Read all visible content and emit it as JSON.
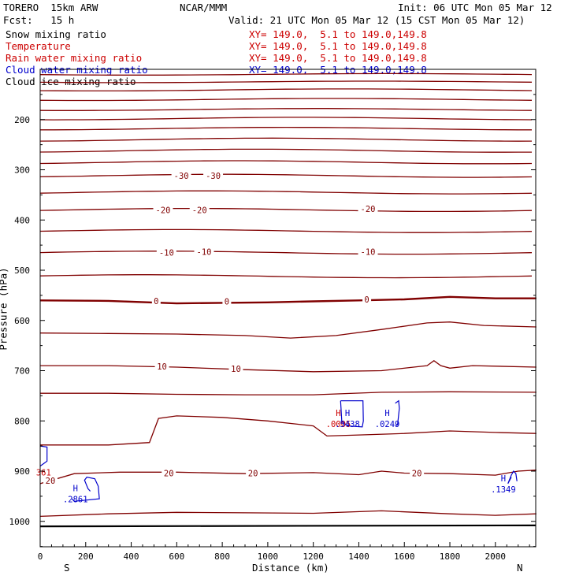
{
  "header": {
    "model": "TORERO  15km ARW",
    "org": "NCAR/MMM",
    "init": "Init: 06 UTC Mon 05 Mar 12",
    "fcst": "Fcst:   15 h",
    "valid": "Valid: 21 UTC Mon 05 Mar 12 (15 CST Mon 05 Mar 12)"
  },
  "fields": [
    {
      "name": "Snow mixing ratio",
      "xy": "",
      "color": "#000000"
    },
    {
      "name": "Temperature",
      "xy": "XY= 149.0,  5.1 to 149.0,149.8",
      "color": "#cc0000"
    },
    {
      "name": "Rain water mixing ratio",
      "xy": "XY= 149.0,  5.1 to 149.0,149.8",
      "color": "#cc0000"
    },
    {
      "name": "Cloud water mixing ratio",
      "xy": "XY= 149.0,  5.1 to 149.0,149.8",
      "color": "#0000cc"
    },
    {
      "name": "Cloud ice mixing ratio",
      "xy": "XY= 149.0,  5.1 to 149.0,149.8",
      "color": "#000000"
    }
  ],
  "colors": {
    "temperature": "#800000",
    "cloud": "#0000cc",
    "rain": "#cc0000",
    "ground": "#000000"
  },
  "chart_data": {
    "type": "line",
    "xlabel": "Distance (km)",
    "ylabel": "Pressure (hPa)",
    "xlim": [
      0,
      2180
    ],
    "ylim": [
      1050,
      100
    ],
    "x_ticks": [
      0,
      200,
      400,
      600,
      800,
      1000,
      1200,
      1400,
      1600,
      1800,
      2000
    ],
    "y_ticks": [
      200,
      300,
      400,
      500,
      600,
      700,
      800,
      900,
      1000
    ],
    "end_labels": {
      "left": "S",
      "right": "N"
    },
    "isotherm_labels": [
      {
        "text": "-30",
        "x": 620,
        "y": 312
      },
      {
        "text": "-30",
        "x": 760,
        "y": 312
      },
      {
        "text": "-20",
        "x": 540,
        "y": 380
      },
      {
        "text": "-20",
        "x": 700,
        "y": 380
      },
      {
        "text": "-20",
        "x": 1440,
        "y": 378
      },
      {
        "text": "-10",
        "x": 555,
        "y": 465
      },
      {
        "text": "-10",
        "x": 720,
        "y": 463
      },
      {
        "text": "-10",
        "x": 1440,
        "y": 463
      },
      {
        "text": "0",
        "x": 510,
        "y": 561
      },
      {
        "text": "0",
        "x": 820,
        "y": 562
      },
      {
        "text": "0",
        "x": 1435,
        "y": 558
      },
      {
        "text": "10",
        "x": 535,
        "y": 691
      },
      {
        "text": "10",
        "x": 860,
        "y": 696
      },
      {
        "text": "20",
        "x": 45,
        "y": 919
      },
      {
        "text": "20",
        "x": 565,
        "y": 904
      },
      {
        "text": "20",
        "x": 935,
        "y": 904
      },
      {
        "text": "20",
        "x": 1655,
        "y": 904
      }
    ],
    "extrema": [
      {
        "kind": "H",
        "value": ".0005",
        "field": "rain",
        "x": 1310,
        "y": 790
      },
      {
        "kind": "H",
        "value": ".5438",
        "field": "cloud",
        "x": 1350,
        "y": 790
      },
      {
        "kind": "H",
        "value": ".0249",
        "field": "cloud",
        "x": 1525,
        "y": 790
      },
      {
        "kind": "H",
        "value": ".2861",
        "field": "cloud",
        "x": 155,
        "y": 940
      },
      {
        "kind": "H",
        "value": ".1349",
        "field": "cloud",
        "x": 2035,
        "y": 920
      },
      {
        "kind": "",
        "value": "361",
        "field": "rain",
        "x": 15,
        "y": 887
      }
    ]
  }
}
